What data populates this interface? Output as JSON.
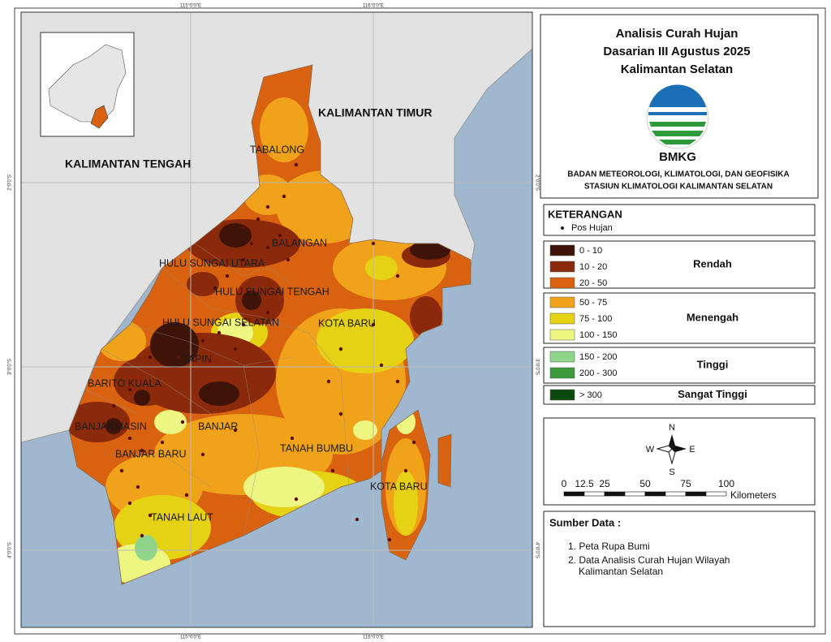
{
  "map": {
    "grid_labels": {
      "lon": [
        "115°0'0\"E",
        "116°0'0\"E"
      ],
      "lat": [
        "2°0'0\"S",
        "3°0'0\"S",
        "4°0'0\"S"
      ]
    },
    "neighbor_labels": [
      "KALIMANTAN TENGAH",
      "KALIMANTAN TIMUR"
    ],
    "region_labels": [
      "TABALONG",
      "BALANGAN",
      "HULU SUNGAI UTARA",
      "HULU SUNGAI TENGAH",
      "HULU SUNGAI SELATAN",
      "KOTA BARU",
      "TAPIN",
      "BARITO KUALA",
      "BANJARMASIN",
      "BANJAR",
      "BANJAR BARU",
      "TANAH BUMBU",
      "KOTA BARU",
      "TANAH LAUT"
    ]
  },
  "legend": {
    "title": [
      "Analisis Curah Hujan",
      "Dasarian III Agustus 2025",
      "Kalimantan Selatan"
    ],
    "logo_text": "BMKG",
    "agency": [
      "BADAN METEOROLOGI, KLIMATOLOGI, DAN GEOFISIKA",
      "STASIUN KLIMATOLOGI KALIMANTAN SELATAN"
    ],
    "heading": "KETERANGAN",
    "station_label": "Pos Hujan",
    "groups": [
      {
        "name": "Rendah",
        "classes": [
          {
            "label": "0 - 10",
            "color": "#3d1407"
          },
          {
            "label": "10 - 20",
            "color": "#8b2a0b"
          },
          {
            "label": "20 - 50",
            "color": "#d8620f"
          }
        ]
      },
      {
        "name": "Menengah",
        "classes": [
          {
            "label": "50 - 75",
            "color": "#f0a31a"
          },
          {
            "label": "75 - 100",
            "color": "#e6d214"
          },
          {
            "label": "100 - 150",
            "color": "#eef682"
          }
        ]
      },
      {
        "name": "Tinggi",
        "classes": [
          {
            "label": "150 - 200",
            "color": "#8fd68b"
          },
          {
            "label": "200 - 300",
            "color": "#3d9a3a"
          }
        ]
      },
      {
        "name": "Sangat Tinggi",
        "classes": [
          {
            "label": "> 300",
            "color": "#0b4a0e"
          }
        ]
      }
    ]
  },
  "compass": {
    "n": "N",
    "e": "E",
    "s": "S",
    "w": "W"
  },
  "scale_bar": {
    "ticks": [
      "0",
      "12.5",
      "25",
      "50",
      "75",
      "100"
    ],
    "unit": "Kilometers"
  },
  "source": {
    "heading": "Sumber Data :",
    "items": [
      [
        "1. Peta Rupa Bumi"
      ],
      [
        "2. Data Analisis Curah Hujan Wilayah",
        "Kalimantan Selatan"
      ]
    ]
  }
}
